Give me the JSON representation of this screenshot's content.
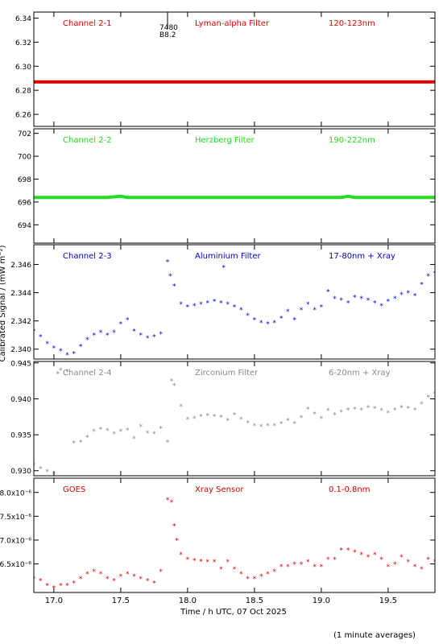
{
  "figure": {
    "ylabel": "Calibrated Signal / (mW m⁻²)",
    "xlabel": "Time / h UTC, 07 Oct 2025",
    "footnote": "(1 minute averages)",
    "x_ticks": [
      "17.0",
      "17.5",
      "18.0",
      "18.5",
      "19.0",
      "19.5"
    ]
  },
  "chart_data": [
    {
      "type": "line",
      "labels": [
        "Channel 2-1",
        "Lyman-alpha Filter",
        "120-123nm"
      ],
      "color": "#dd0000",
      "xlim": [
        16.85,
        19.85
      ],
      "ylim": [
        6.25,
        6.345
      ],
      "yticks": [
        6.26,
        6.28,
        6.3,
        6.32,
        6.34
      ],
      "ytick_labels": [
        "6.26",
        "6.28",
        "6.30",
        "6.32",
        "6.34"
      ],
      "annotations": [
        "7480",
        "B8.2"
      ],
      "series": [
        {
          "x": [
            16.85,
            17.5,
            18.0,
            18.5,
            19.0,
            19.5,
            19.85
          ],
          "y": [
            6.287,
            6.287,
            6.287,
            6.287,
            6.287,
            6.287,
            6.287
          ]
        }
      ]
    },
    {
      "type": "line",
      "labels": [
        "Channel 2-2",
        "Herzberg Filter",
        "190-222nm"
      ],
      "color": "#22dd22",
      "xlim": [
        16.85,
        19.85
      ],
      "ylim": [
        692.4,
        702.4
      ],
      "yticks": [
        694,
        696,
        698,
        700,
        702
      ],
      "ytick_labels": [
        "694",
        "696",
        "698",
        "700",
        "702"
      ],
      "series": [
        {
          "x": [
            16.85,
            17.4,
            17.5,
            17.55,
            17.7,
            18.5,
            19.15,
            19.2,
            19.25,
            19.85
          ],
          "y": [
            696.4,
            696.4,
            696.5,
            696.4,
            696.4,
            696.4,
            696.4,
            696.5,
            696.4,
            696.4
          ]
        }
      ]
    },
    {
      "type": "scatter",
      "labels": [
        "Channel 2-3",
        "Aluminium Filter",
        "17-80nm + Xray"
      ],
      "color": "#0000cc",
      "xlim": [
        16.85,
        19.85
      ],
      "ylim": [
        2.3393,
        2.3474
      ],
      "yticks": [
        2.34,
        2.342,
        2.344,
        2.346
      ],
      "ytick_labels": [
        "2.340",
        "2.342",
        "2.344",
        "2.346"
      ],
      "series": [
        {
          "x": [
            16.85,
            16.9,
            16.95,
            17.0,
            17.05,
            17.1,
            17.15,
            17.2,
            17.25,
            17.3,
            17.35,
            17.4,
            17.45,
            17.5,
            17.55,
            17.6,
            17.65,
            17.7,
            17.75,
            17.8,
            17.85,
            17.87,
            17.9,
            17.95,
            18.0,
            18.05,
            18.1,
            18.15,
            18.2,
            18.25,
            18.27,
            18.3,
            18.35,
            18.4,
            18.45,
            18.5,
            18.55,
            18.6,
            18.65,
            18.7,
            18.75,
            18.8,
            18.85,
            18.9,
            18.95,
            19.0,
            19.05,
            19.1,
            19.15,
            19.2,
            19.25,
            19.3,
            19.35,
            19.4,
            19.45,
            19.5,
            19.55,
            19.6,
            19.65,
            19.7,
            19.75,
            19.8,
            19.85
          ],
          "y": [
            2.3413,
            2.3409,
            2.3404,
            2.3401,
            2.3399,
            2.3396,
            2.3397,
            2.3402,
            2.3407,
            2.341,
            2.3412,
            2.341,
            2.3412,
            2.3418,
            2.3421,
            2.3413,
            2.341,
            2.3408,
            2.3409,
            2.3411,
            2.3462,
            2.3452,
            2.3445,
            2.3432,
            2.343,
            2.3431,
            2.3432,
            2.3433,
            2.3434,
            2.3433,
            2.3458,
            2.3432,
            2.343,
            2.3428,
            2.3424,
            2.3421,
            2.3419,
            2.3418,
            2.3419,
            2.3422,
            2.3427,
            2.3421,
            2.3428,
            2.3432,
            2.3428,
            2.343,
            2.3441,
            2.3436,
            2.3435,
            2.3433,
            2.3437,
            2.3436,
            2.3435,
            2.3433,
            2.3431,
            2.3434,
            2.3436,
            2.3439,
            2.344,
            2.3438,
            2.3446,
            2.3452,
            2.3454
          ]
        }
      ]
    },
    {
      "type": "scatter",
      "labels": [
        "Channel 2-4",
        "Zirconium Filter",
        "6-20nm + Xray"
      ],
      "color": "#888888",
      "xlim": [
        16.85,
        19.85
      ],
      "ylim": [
        0.9293,
        0.9452
      ],
      "yticks": [
        0.93,
        0.935,
        0.94,
        0.945
      ],
      "ytick_labels": [
        "0.930",
        "0.935",
        "0.940",
        "0.945"
      ],
      "series": [
        {
          "x": [
            16.85,
            16.9,
            16.95,
            17.0,
            17.03,
            17.05,
            17.1,
            17.15,
            17.2,
            17.25,
            17.3,
            17.35,
            17.4,
            17.45,
            17.5,
            17.55,
            17.6,
            17.65,
            17.7,
            17.75,
            17.8,
            17.85,
            17.88,
            17.9,
            17.95,
            18.0,
            18.05,
            18.1,
            18.15,
            18.2,
            18.25,
            18.3,
            18.35,
            18.4,
            18.45,
            18.5,
            18.55,
            18.6,
            18.65,
            18.7,
            18.75,
            18.8,
            18.85,
            18.9,
            18.95,
            19.0,
            19.05,
            19.1,
            19.15,
            19.2,
            19.25,
            19.3,
            19.35,
            19.4,
            19.45,
            19.5,
            19.55,
            19.6,
            19.65,
            19.7,
            19.75,
            19.8,
            19.85
          ],
          "y": [
            0.9308,
            0.9303,
            0.9299,
            0.9296,
            0.9435,
            0.944,
            0.9438,
            0.9339,
            0.934,
            0.9347,
            0.9355,
            0.9358,
            0.9356,
            0.9352,
            0.9355,
            0.9357,
            0.9345,
            0.9362,
            0.9353,
            0.9352,
            0.9359,
            0.934,
            0.9425,
            0.9419,
            0.939,
            0.9372,
            0.9373,
            0.9376,
            0.9377,
            0.9376,
            0.9375,
            0.937,
            0.9378,
            0.9372,
            0.9367,
            0.9363,
            0.9362,
            0.9363,
            0.9363,
            0.9366,
            0.937,
            0.9366,
            0.9374,
            0.9386,
            0.9379,
            0.9373,
            0.9384,
            0.9378,
            0.9382,
            0.9385,
            0.9386,
            0.9385,
            0.9388,
            0.9387,
            0.9384,
            0.9381,
            0.9385,
            0.9388,
            0.9387,
            0.9385,
            0.9393,
            0.9403,
            0.9407
          ]
        }
      ]
    },
    {
      "type": "scatter",
      "labels": [
        "GOES",
        "Xray Sensor",
        "0.1-0.8nm"
      ],
      "color": "#dd0000",
      "xlim": [
        16.85,
        19.85
      ],
      "ylim": [
        5.9e-06,
        8.3e-06
      ],
      "yticks": [
        6.5e-06,
        7e-06,
        7.5e-06,
        8e-06
      ],
      "ytick_labels": [
        "6.5x10⁻⁶",
        "7.0x10⁻⁶",
        "7.5x10⁻⁶",
        "8.0x10⁻⁶"
      ],
      "series": [
        {
          "x": [
            16.85,
            16.9,
            16.95,
            17.0,
            17.05,
            17.1,
            17.15,
            17.2,
            17.25,
            17.3,
            17.35,
            17.4,
            17.45,
            17.5,
            17.55,
            17.6,
            17.65,
            17.7,
            17.75,
            17.8,
            17.85,
            17.88,
            17.9,
            17.92,
            17.95,
            18.0,
            18.05,
            18.1,
            18.15,
            18.2,
            18.25,
            18.3,
            18.35,
            18.4,
            18.45,
            18.5,
            18.55,
            18.6,
            18.65,
            18.7,
            18.75,
            18.8,
            18.85,
            18.9,
            18.95,
            19.0,
            19.05,
            19.1,
            19.15,
            19.2,
            19.25,
            19.3,
            19.35,
            19.4,
            19.45,
            19.5,
            19.55,
            19.6,
            19.65,
            19.7,
            19.75,
            19.8,
            19.85
          ],
          "y": [
            6.2e-06,
            6.15e-06,
            6.05e-06,
            6e-06,
            6.05e-06,
            6.05e-06,
            6.1e-06,
            6.2e-06,
            6.3e-06,
            6.35e-06,
            6.3e-06,
            6.2e-06,
            6.15e-06,
            6.25e-06,
            6.3e-06,
            6.25e-06,
            6.2e-06,
            6.15e-06,
            6.1e-06,
            6.35e-06,
            7.85e-06,
            7.8e-06,
            7.3e-06,
            7e-06,
            6.7e-06,
            6.6e-06,
            6.58e-06,
            6.56e-06,
            6.55e-06,
            6.55e-06,
            6.4e-06,
            6.55e-06,
            6.4e-06,
            6.3e-06,
            6.2e-06,
            6.2e-06,
            6.25e-06,
            6.3e-06,
            6.35e-06,
            6.45e-06,
            6.45e-06,
            6.5e-06,
            6.5e-06,
            6.55e-06,
            6.45e-06,
            6.45e-06,
            6.6e-06,
            6.6e-06,
            6.8e-06,
            6.8e-06,
            6.75e-06,
            6.7e-06,
            6.65e-06,
            6.7e-06,
            6.6e-06,
            6.45e-06,
            6.5e-06,
            6.65e-06,
            6.55e-06,
            6.45e-06,
            6.4e-06,
            6.6e-06,
            6.55e-06
          ]
        }
      ]
    }
  ]
}
